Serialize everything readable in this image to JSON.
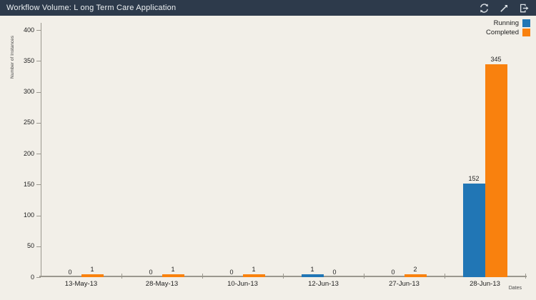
{
  "header": {
    "title": "Workflow Volume: L ong Term Care Application",
    "icons": [
      "refresh-icon",
      "expand-icon",
      "export-icon"
    ]
  },
  "chart_data": {
    "type": "bar",
    "title": "Workflow Volume: L ong Term Care Application",
    "categories": [
      "13-May-13",
      "28-May-13",
      "10-Jun-13",
      "12-Jun-13",
      "27-Jun-13",
      "28-Jun-13"
    ],
    "series": [
      {
        "name": "Running",
        "color": "#2176b5",
        "values": [
          0,
          0,
          0,
          1,
          0,
          152
        ]
      },
      {
        "name": "Completed",
        "color": "#f9810e",
        "values": [
          1,
          1,
          1,
          0,
          2,
          345
        ]
      }
    ],
    "xlabel": "Dates",
    "ylabel": "Number of Instances",
    "ylim": [
      0,
      400
    ],
    "ytick_step": 50,
    "grid": false,
    "legend_position": "top-right",
    "value_labels": true
  },
  "colors": {
    "header_bg": "#2d3a4b",
    "header_text": "#eef1f3",
    "background": "#f2efe8",
    "axis": "#9b988f",
    "label_text": "#1e1e1e"
  }
}
